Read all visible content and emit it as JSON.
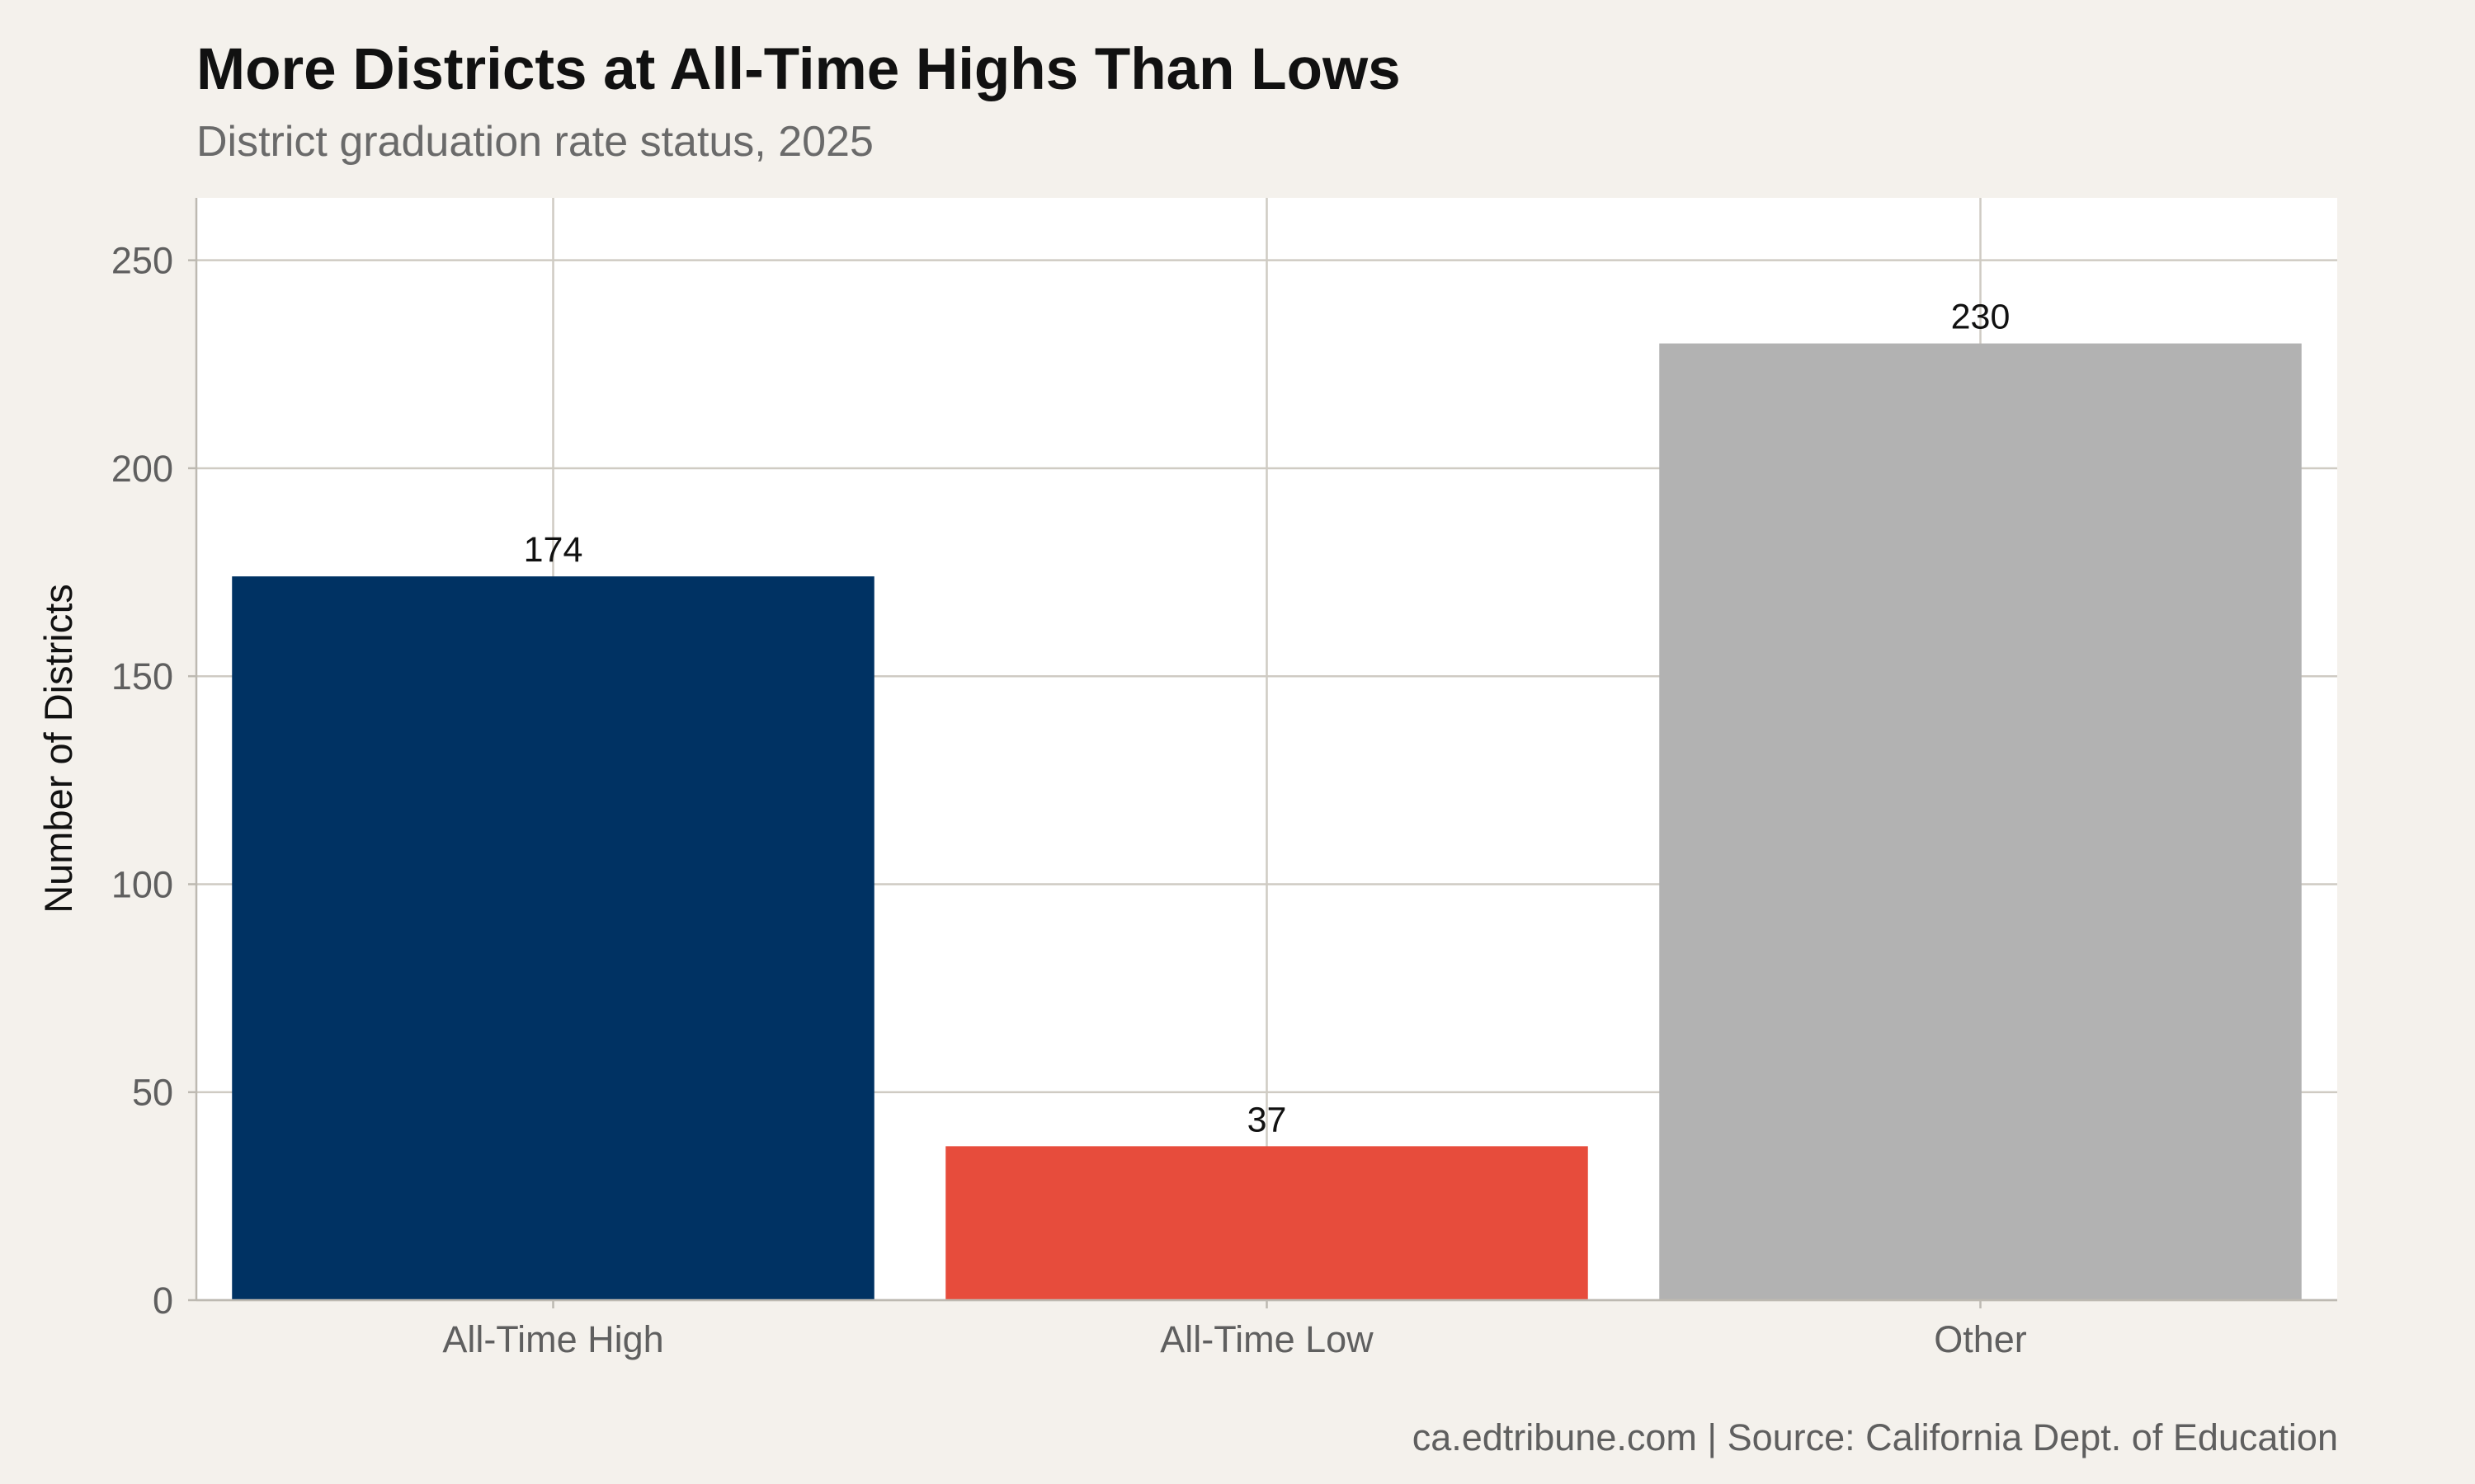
{
  "chart_data": {
    "type": "bar",
    "title": "More Districts at All-Time Highs Than Lows",
    "subtitle": "District graduation rate status, 2025",
    "xlabel": "",
    "ylabel": "Number of Districts",
    "categories": [
      "All-Time High",
      "All-Time Low",
      "Other"
    ],
    "values": [
      174,
      37,
      230
    ],
    "data_labels": [
      "174",
      "37",
      "230"
    ],
    "bar_colors": [
      "#003263",
      "#e74c3c",
      "#b2b2b2"
    ],
    "ylim": [
      0,
      265
    ],
    "yticks": [
      0,
      50,
      100,
      150,
      200,
      250
    ],
    "grid": true,
    "caption": "ca.edtribune.com | Source: California Dept. of Education"
  }
}
